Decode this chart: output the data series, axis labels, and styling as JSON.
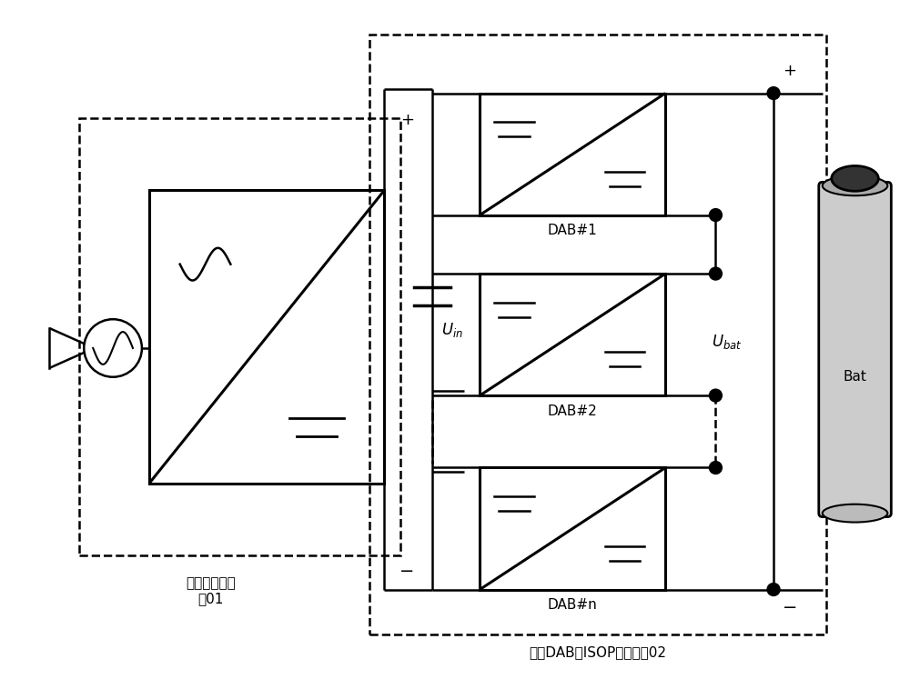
{
  "bg_color": "#ffffff",
  "line_color": "#000000",
  "fig_width": 10.0,
  "fig_height": 7.58,
  "label_01": "单相整流变换\n器01",
  "label_02": "基于DAB的ISOP型变换器02",
  "label_dab1": "DAB#1",
  "label_dab2": "DAB#2",
  "label_dabn": "DAB#n",
  "label_uin": "$U_{in}$",
  "label_ubat": "$U_{bat}$",
  "label_bat": "Bat",
  "label_plus": "+",
  "label_minus": "−",
  "label_plus2": "+",
  "label_minus2": "−"
}
